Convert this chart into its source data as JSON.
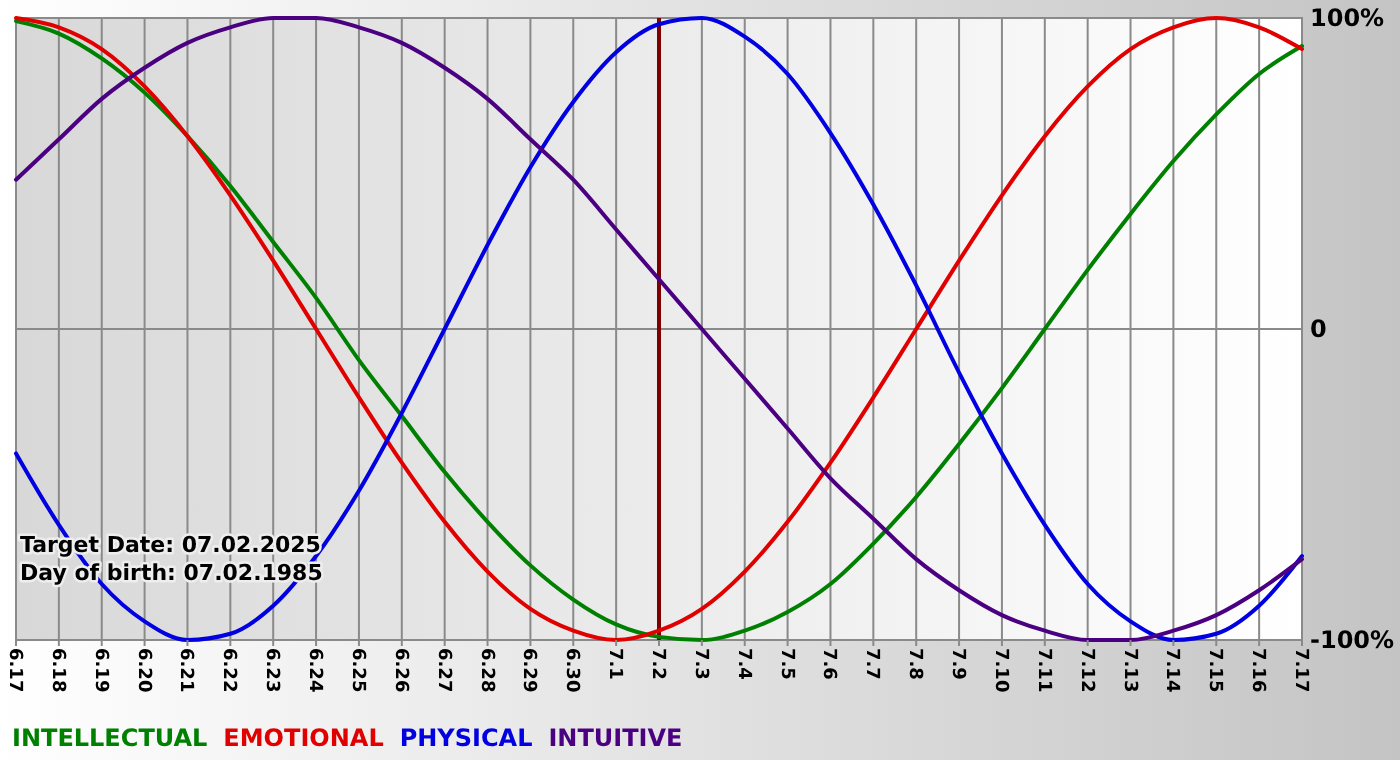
{
  "chart_data": {
    "type": "line",
    "categories": [
      "6.17",
      "6.18",
      "6.19",
      "6.20",
      "6.21",
      "6.22",
      "6.23",
      "6.24",
      "6.25",
      "6.26",
      "6.27",
      "6.28",
      "6.29",
      "6.30",
      "7.1",
      "7.2",
      "7.3",
      "7.4",
      "7.5",
      "7.6",
      "7.7",
      "7.8",
      "7.9",
      "7.10",
      "7.11",
      "7.12",
      "7.13",
      "7.14",
      "7.15",
      "7.16",
      "7.17"
    ],
    "series": [
      {
        "name": "INTELLECTUAL",
        "color": "#008000",
        "values": [
          99,
          95,
          87,
          76,
          62,
          46,
          28,
          10,
          -10,
          -28,
          -46,
          -62,
          -76,
          -87,
          -95,
          -99,
          -100,
          -97,
          -91,
          -82,
          -69,
          -54,
          -37,
          -19,
          0,
          19,
          37,
          54,
          69,
          82,
          91
        ]
      },
      {
        "name": "EMOTIONAL",
        "color": "#e00000",
        "values": [
          100,
          97,
          90,
          78,
          62,
          43,
          22,
          0,
          -22,
          -43,
          -62,
          -78,
          -90,
          -97,
          -100,
          -97,
          -90,
          -78,
          -62,
          -43,
          -22,
          0,
          22,
          43,
          62,
          78,
          90,
          97,
          100,
          97,
          90
        ]
      },
      {
        "name": "PHYSICAL",
        "color": "#0000e0",
        "values": [
          -40,
          -63,
          -82,
          -94,
          -100,
          -98,
          -89,
          -73,
          -52,
          -27,
          0,
          27,
          52,
          73,
          89,
          98,
          100,
          94,
          82,
          63,
          40,
          14,
          -14,
          -40,
          -63,
          -82,
          -94,
          -100,
          -98,
          -89,
          -73
        ]
      },
      {
        "name": "INTUITIVE",
        "color": "#4b0082",
        "values": [
          48,
          61,
          74,
          84,
          92,
          97,
          100,
          100,
          97,
          92,
          84,
          74,
          61,
          48,
          32,
          16,
          0,
          -16,
          -32,
          -48,
          -61,
          -74,
          -84,
          -92,
          -97,
          -100,
          -100,
          -97,
          -92,
          -84,
          -74
        ]
      }
    ],
    "ylim": [
      -100,
      100
    ],
    "yticks": [
      {
        "value": -100,
        "label": "-100%"
      },
      0,
      {
        "value": 100,
        "label": "100%"
      }
    ],
    "grid": true,
    "legend": "bottom",
    "marker": "none",
    "line_style": "solid",
    "ref_lines": [
      {
        "axis": "x",
        "value": "7.2",
        "color": "#800000"
      }
    ],
    "annotations": [
      "Target Date: 07.02.2025",
      "Day of birth: 07.02.1985"
    ]
  }
}
